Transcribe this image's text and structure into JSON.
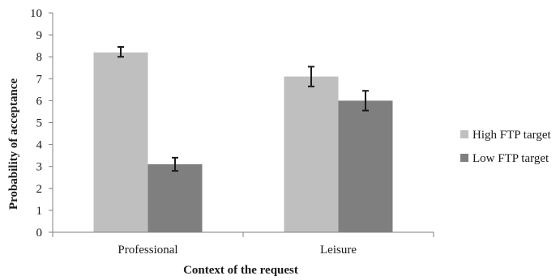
{
  "chart_data": {
    "type": "bar",
    "title": "",
    "xlabel": "Context of the request",
    "ylabel": "Probability of acceptance",
    "ylim": [
      0,
      10
    ],
    "yticks": [
      0,
      1,
      2,
      3,
      4,
      5,
      6,
      7,
      8,
      9,
      10
    ],
    "categories": [
      "Professional",
      "Leisure"
    ],
    "series": [
      {
        "name": "High FTP target",
        "color": "#bfbfbf",
        "values": [
          8.2,
          7.1
        ],
        "error": [
          [
            8.0,
            8.45
          ],
          [
            6.65,
            7.55
          ]
        ]
      },
      {
        "name": "Low FTP target",
        "color": "#7f7f7f",
        "values": [
          3.1,
          6.0
        ],
        "error": [
          [
            2.8,
            3.4
          ],
          [
            5.55,
            6.45
          ]
        ]
      }
    ],
    "grid": false,
    "legend_position": "right"
  }
}
